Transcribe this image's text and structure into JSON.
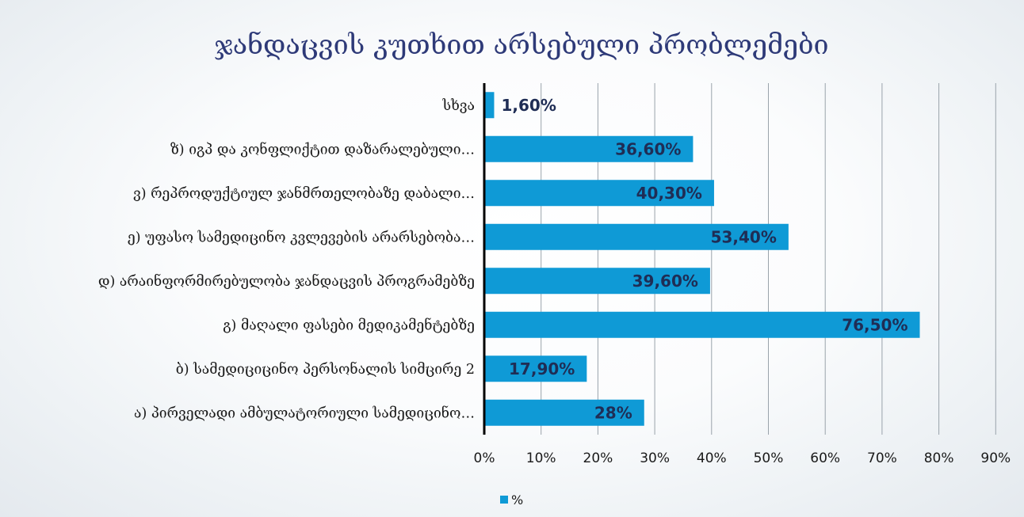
{
  "chart_data": {
    "type": "bar",
    "orientation": "horizontal",
    "title": "ჯანდაცვის კუთხით არსებული პრობლემები",
    "categories": [
      "სხვა",
      "ზ) იგპ და კონფლიქტით დაზარალებული…",
      "ვ) რეპროდუქტიულ ჯანმრთელობაზე დაბალი…",
      "ე) უფასო სამედიცინო კვლევების არარსებობა…",
      "დ) არაინფორმირებულობა ჯანდაცვის პროგრამებზე",
      "გ) მაღალი ფასები მედიკამენტებზე",
      "ბ) სამედიციცინო პერსონალის სიმცირე 2",
      "ა) პირველადი ამბულატორიული სამედიცინო…"
    ],
    "series": [
      {
        "name": "%",
        "values": [
          1.6,
          36.6,
          40.3,
          53.4,
          39.6,
          76.5,
          17.9,
          28
        ],
        "labels": [
          "1,60%",
          "36,60%",
          "40,30%",
          "53,40%",
          "39,60%",
          "76,50%",
          "17,90%",
          "28%"
        ],
        "color": "#0f9ad6"
      }
    ],
    "x_ticks": [
      "0%",
      "10%",
      "20%",
      "30%",
      "40%",
      "50%",
      "60%",
      "70%",
      "80%",
      "90%"
    ],
    "xlim": [
      0,
      90
    ],
    "grid": true,
    "legend_position": "bottom",
    "label_color": "#1f2d55",
    "axis_color": "#000000",
    "grid_color": "#9aa3ab"
  }
}
